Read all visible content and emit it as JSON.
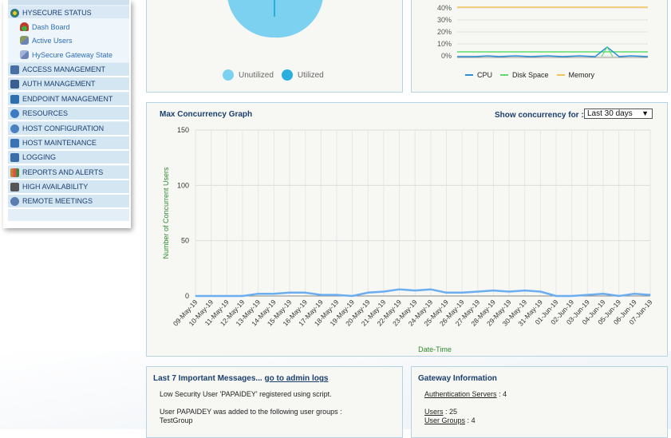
{
  "sidebar": {
    "section": {
      "label": "HYSECURE STATUS"
    },
    "sub_items": [
      {
        "label": "Dash Board",
        "color": "#c0392b"
      },
      {
        "label": "Active Users",
        "color": "#7a8a4c"
      },
      {
        "label": "HySecure Gateway State",
        "color": "#6a84b8"
      }
    ],
    "items": [
      {
        "label": "ACCESS MANAGEMENT",
        "color": "#4a6fa5"
      },
      {
        "label": "AUTH MANAGEMENT",
        "color": "#3b5e92"
      },
      {
        "label": "ENDPOINT MANAGEMENT",
        "color": "#2f6fb0"
      },
      {
        "label": "RESOURCES",
        "color": "#3d7cc4"
      },
      {
        "label": "HOST CONFIGURATION",
        "color": "#4b82c2"
      },
      {
        "label": "HOST MAINTENANCE",
        "color": "#3a73b6"
      },
      {
        "label": "LOGGING",
        "color": "#3a6ea8"
      },
      {
        "label": "REPORTS AND ALERTS",
        "color": "#c8862a"
      },
      {
        "label": "HIGH AVAILABILITY",
        "color": "#555555"
      },
      {
        "label": "REMOTE MEETINGS",
        "color": "#5a7cae"
      }
    ]
  },
  "utilization": {
    "legend": [
      {
        "label": "Unutilized",
        "color": "#7dd1f0"
      },
      {
        "label": "Utilized",
        "color": "#2aaee0"
      }
    ]
  },
  "resources_chart": {
    "y_ticks": [
      "40%",
      "30%",
      "20%",
      "10%",
      "0%"
    ],
    "legend": [
      {
        "label": "CPU",
        "color": "#2b8fd6"
      },
      {
        "label": "Disk Space",
        "color": "#5ddc6c"
      },
      {
        "label": "Memory",
        "color": "#f3c35a"
      }
    ]
  },
  "concurrency": {
    "title": "Max Concurrency Graph",
    "show_for_label": "Show concurrency for :",
    "select_value": "Last 30 days"
  },
  "chart_data": {
    "type": "line",
    "xlabel": "Date-Time",
    "ylabel": "Number of Concurrent Users",
    "ylim": [
      0,
      150
    ],
    "y_ticks": [
      0,
      50,
      100,
      150
    ],
    "grid": true,
    "categories": [
      "09-May-19",
      "10-May-19",
      "11-May-19",
      "12-May-19",
      "13-May-19",
      "14-May-19",
      "15-May-19",
      "16-May-19",
      "17-May-19",
      "18-May-19",
      "19-May-19",
      "20-May-19",
      "21-May-19",
      "22-May-19",
      "23-May-19",
      "24-May-19",
      "25-May-19",
      "26-May-19",
      "27-May-19",
      "28-May-19",
      "29-May-19",
      "30-May-19",
      "31-May-19",
      "01-Jun-19",
      "02-Jun-19",
      "03-Jun-19",
      "04-Jun-19",
      "05-Jun-19",
      "06-Jun-19",
      "07-Jun-19"
    ],
    "series": [
      {
        "values": [
          0,
          0,
          0,
          0,
          2,
          2,
          3,
          3,
          1,
          1,
          0,
          3,
          4,
          6,
          5,
          6,
          3,
          3,
          4,
          5,
          4,
          5,
          4,
          0,
          0,
          1,
          2,
          0,
          2,
          1
        ],
        "color": "#6aaef0"
      }
    ]
  },
  "messages": {
    "title": "Last 7 Important Messages...",
    "link": "go to admin logs",
    "lines": [
      "Low Security User 'PAPAIDEY' registered using script.",
      "User PAPAIDEY was added to the following user groups :",
      "TestGroup"
    ]
  },
  "gateway": {
    "title": "Gateway Information",
    "rows": [
      {
        "label": "Authentication Servers",
        "value": "4"
      },
      {
        "label": "Users",
        "value": "25"
      },
      {
        "label": "User Groups",
        "value": "4"
      }
    ]
  }
}
